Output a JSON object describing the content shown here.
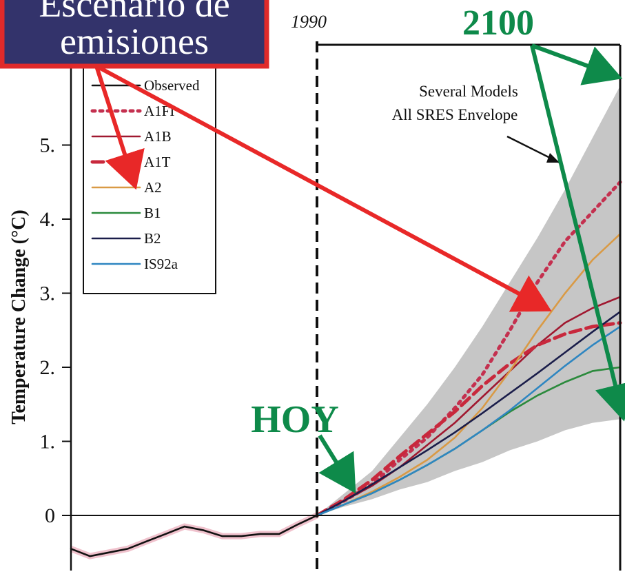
{
  "chart_data": {
    "type": "line",
    "title": "",
    "xlabel": "",
    "ylabel": "Temperature Change (°C)",
    "yticks": [
      "0",
      "1",
      "2",
      "3",
      "4",
      "5"
    ],
    "ylim": [
      -0.7,
      6.3
    ],
    "xlim": [
      1990,
      2100
    ],
    "reference_year_label": "1990",
    "envelope_label_line1": "Several Models",
    "envelope_label_line2": "All SRES Envelope",
    "envelope": {
      "x": [
        1990,
        2000,
        2010,
        2020,
        2030,
        2040,
        2050,
        2060,
        2070,
        2080,
        2090,
        2100
      ],
      "upper": [
        0.0,
        0.3,
        0.6,
        1.05,
        1.5,
        2.0,
        2.55,
        3.15,
        3.75,
        4.4,
        5.1,
        5.8
      ],
      "lower": [
        0.0,
        0.12,
        0.22,
        0.35,
        0.45,
        0.6,
        0.72,
        0.88,
        1.0,
        1.15,
        1.25,
        1.3
      ]
    },
    "series": [
      {
        "name": "Observed",
        "color": "#111111",
        "dash": "none",
        "x": [
          1860,
          1870,
          1880,
          1890,
          1900,
          1910,
          1920,
          1930,
          1940,
          1950,
          1960,
          1970,
          1980,
          1990
        ],
        "y": [
          -0.45,
          -0.55,
          -0.5,
          -0.45,
          -0.35,
          -0.25,
          -0.15,
          -0.2,
          -0.28,
          -0.28,
          -0.25,
          -0.25,
          -0.12,
          0.0
        ]
      },
      {
        "name": "A1FI",
        "color": "#c4304f",
        "dash": "dot",
        "x": [
          1990,
          2000,
          2010,
          2020,
          2030,
          2040,
          2050,
          2060,
          2070,
          2080,
          2090,
          2100
        ],
        "y": [
          0.0,
          0.2,
          0.42,
          0.75,
          1.05,
          1.45,
          1.9,
          2.5,
          3.15,
          3.7,
          4.1,
          4.5
        ]
      },
      {
        "name": "A1B",
        "color": "#a01830",
        "dash": "none",
        "x": [
          1990,
          2000,
          2010,
          2020,
          2030,
          2040,
          2050,
          2060,
          2070,
          2080,
          2090,
          2100
        ],
        "y": [
          0.0,
          0.2,
          0.4,
          0.65,
          0.95,
          1.25,
          1.6,
          1.95,
          2.3,
          2.6,
          2.8,
          2.95
        ]
      },
      {
        "name": "A1T",
        "color": "#c8283c",
        "dash": "dash",
        "x": [
          1990,
          2000,
          2010,
          2020,
          2030,
          2040,
          2050,
          2060,
          2070,
          2080,
          2090,
          2100
        ],
        "y": [
          0.0,
          0.22,
          0.48,
          0.8,
          1.1,
          1.4,
          1.75,
          2.05,
          2.3,
          2.45,
          2.55,
          2.6
        ]
      },
      {
        "name": "A2",
        "color": "#d99a45",
        "dash": "none",
        "x": [
          1990,
          2000,
          2010,
          2020,
          2030,
          2040,
          2050,
          2060,
          2070,
          2080,
          2090,
          2100
        ],
        "y": [
          0.0,
          0.15,
          0.32,
          0.52,
          0.75,
          1.05,
          1.45,
          1.95,
          2.5,
          3.0,
          3.45,
          3.8
        ]
      },
      {
        "name": "B1",
        "color": "#2b8a3c",
        "dash": "none",
        "x": [
          1990,
          2000,
          2010,
          2020,
          2030,
          2040,
          2050,
          2060,
          2070,
          2080,
          2090,
          2100
        ],
        "y": [
          0.0,
          0.15,
          0.3,
          0.48,
          0.68,
          0.9,
          1.15,
          1.4,
          1.62,
          1.8,
          1.95,
          2.0
        ]
      },
      {
        "name": "B2",
        "color": "#1a1d4a",
        "dash": "none",
        "x": [
          1990,
          2000,
          2010,
          2020,
          2030,
          2040,
          2050,
          2060,
          2070,
          2080,
          2090,
          2100
        ],
        "y": [
          0.0,
          0.2,
          0.42,
          0.65,
          0.88,
          1.12,
          1.38,
          1.65,
          1.92,
          2.2,
          2.48,
          2.75
        ]
      },
      {
        "name": "IS92a",
        "color": "#2e86c1",
        "dash": "none",
        "x": [
          1990,
          2000,
          2010,
          2020,
          2030,
          2040,
          2050,
          2060,
          2070,
          2080,
          2090,
          2100
        ],
        "y": [
          0.0,
          0.15,
          0.3,
          0.48,
          0.68,
          0.9,
          1.15,
          1.42,
          1.72,
          2.02,
          2.3,
          2.55
        ]
      }
    ]
  },
  "annotations": {
    "scenario_box": {
      "line1": "Escenario de",
      "line2": "emisiones",
      "fill": "#33336b",
      "border": "#e02a2a",
      "text_color": "#ffffff"
    },
    "hoy_label": "HOY",
    "year_2100_label": "2100",
    "arrow_red": "#e82828",
    "arrow_green": "#0e8a4a"
  }
}
